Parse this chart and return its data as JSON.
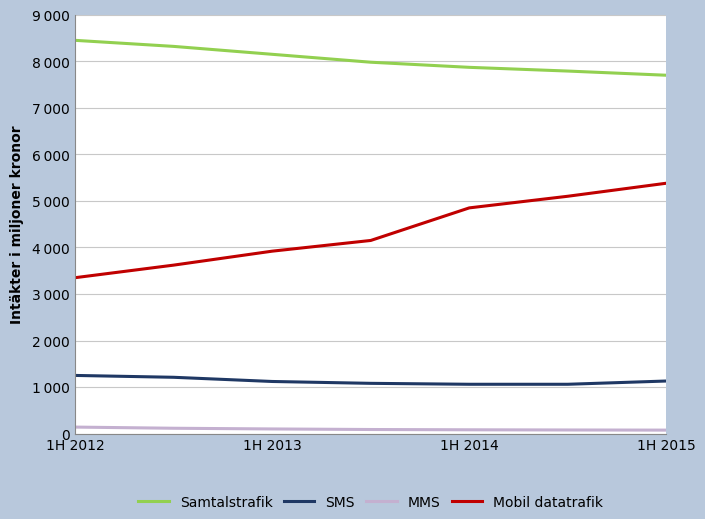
{
  "x_labels": [
    "1H 2012",
    "1H 2013",
    "1H 2014",
    "1H 2015"
  ],
  "x_ticks": [
    0,
    2,
    4,
    6
  ],
  "x_values": [
    0,
    1,
    2,
    3,
    4,
    5,
    6
  ],
  "samtalstrafik": [
    8450,
    8320,
    8150,
    7980,
    7870,
    7790,
    7700
  ],
  "sms": [
    1250,
    1210,
    1120,
    1080,
    1060,
    1060,
    1130
  ],
  "mms": [
    140,
    115,
    100,
    88,
    82,
    78,
    75
  ],
  "mobil_datatrafik": [
    3350,
    3620,
    3920,
    4150,
    4850,
    5100,
    5380
  ],
  "samtalstrafik_color": "#92d050",
  "sms_color": "#1f3864",
  "mms_color": "#c4b0d0",
  "mobil_datatrafik_color": "#c00000",
  "ylabel": "Intäkter i miljoner kronor",
  "ylim": [
    0,
    9000
  ],
  "yticks": [
    0,
    1000,
    2000,
    3000,
    4000,
    5000,
    6000,
    7000,
    8000,
    9000
  ],
  "background_color": "#b8c8dc",
  "plot_background": "#ffffff",
  "grid_color": "#c8c8c8",
  "legend_labels": [
    "Samtalstrafik",
    "SMS",
    "MMS",
    "Mobil datatrafik"
  ],
  "line_width": 2.2,
  "label_fontsize": 10,
  "tick_fontsize": 10,
  "legend_fontsize": 10
}
